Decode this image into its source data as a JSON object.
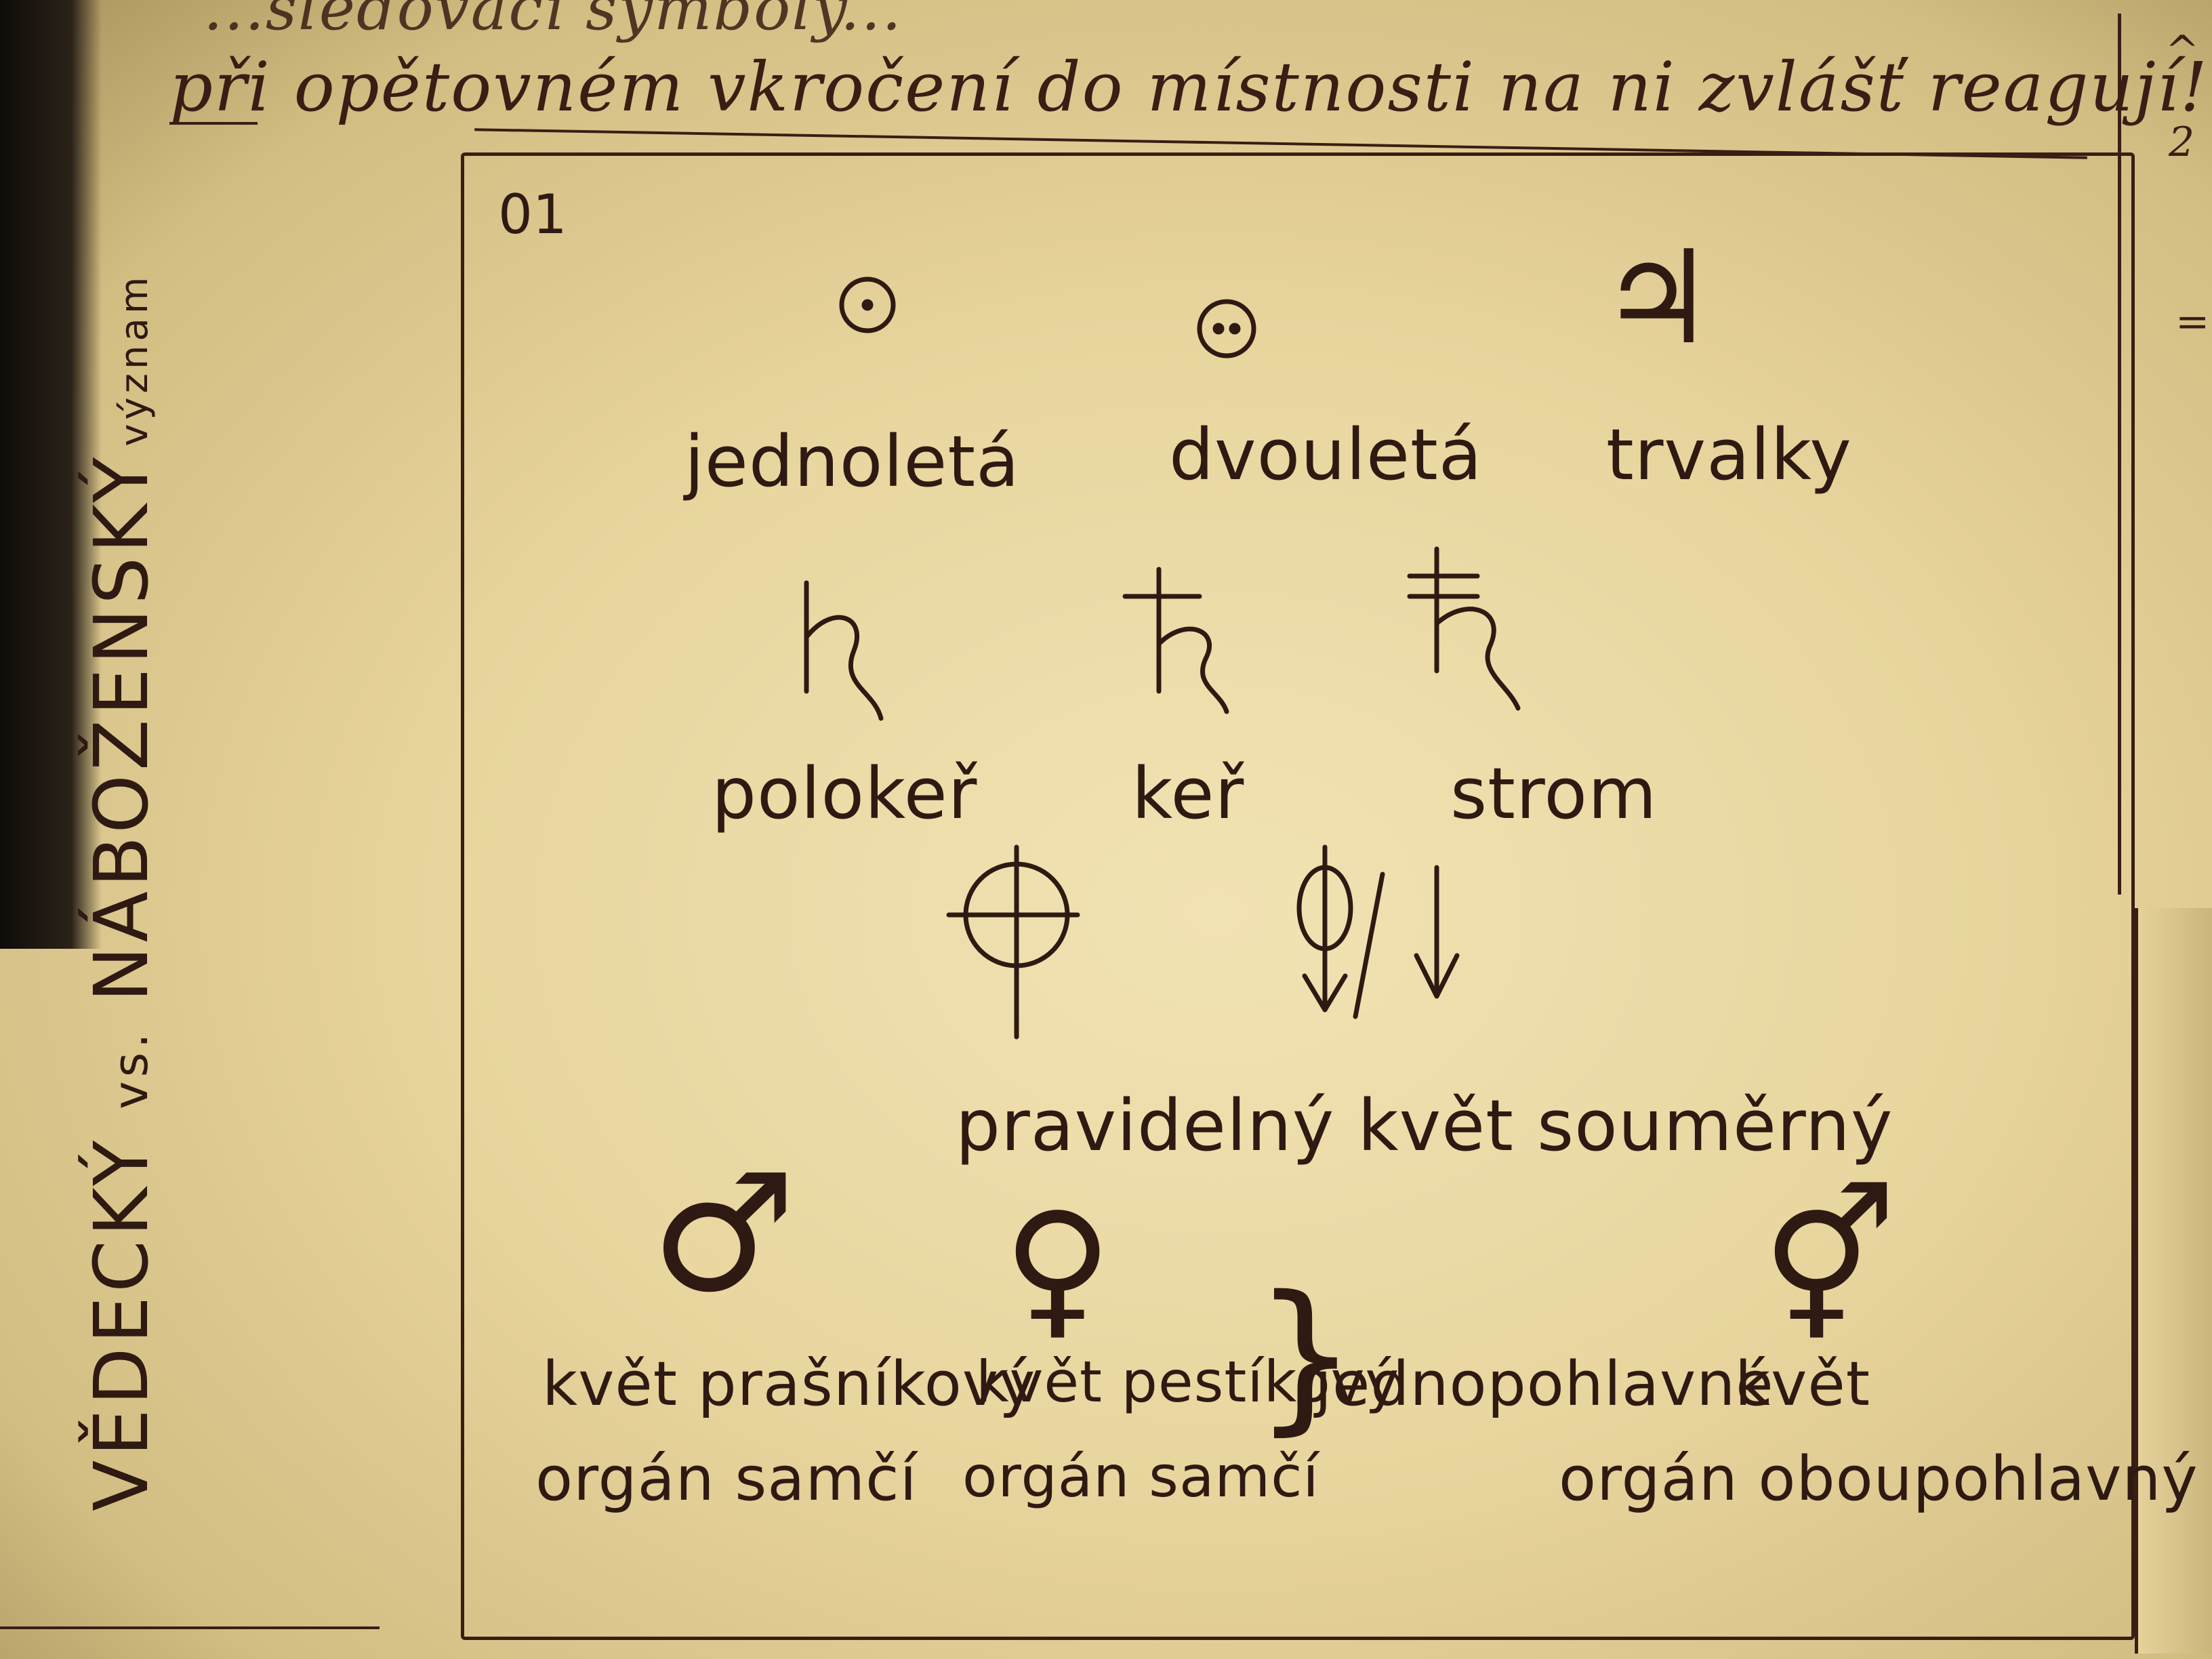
{
  "header": {
    "top_line": "...sledovací symboly...",
    "main_line": "při opětovném vkročení do místnosti na ni zvlášť reagují!"
  },
  "side_notes": {
    "right_top_1": "^",
    "right_top_2": "2",
    "right_top_3": "="
  },
  "vertical_title": {
    "left": "VĚDECKÝ",
    "vs": "vs.",
    "right": "NÁBOŽENSKÝ",
    "suffix": "význam"
  },
  "frame": {
    "number": "01"
  },
  "row1": [
    {
      "icon": "annual-circle-dot-icon",
      "label": "jednoletá"
    },
    {
      "icon": "biennial-circle-two-dots-icon",
      "label": "dvouletá"
    },
    {
      "icon": "perennial-jupiter-icon",
      "glyph": "♃",
      "label": "trvalky"
    }
  ],
  "row2": [
    {
      "icon": "saturn-subshrub-icon",
      "label": "polokeř"
    },
    {
      "icon": "saturn-shrub-icon",
      "label": "keř"
    },
    {
      "icon": "saturn-tree-icon",
      "label": "strom"
    }
  ],
  "row3": {
    "label": "pravidelný květ souměrný",
    "separator": "/"
  },
  "row4": [
    {
      "icon": "male-symbol-icon",
      "glyph": "♂",
      "line1": "květ prašníkový",
      "line2": "orgán samčí"
    },
    {
      "icon": "female-symbol-icon",
      "glyph": "♀",
      "line1": "květ pestíkový",
      "line2": "orgán samčí"
    },
    {
      "brace": "}",
      "label": "jednopohlavné"
    },
    {
      "icon": "hermaphrodite-symbol-icon",
      "glyph": "⚥",
      "line1": "květ",
      "line2": "orgán oboupohlavný"
    }
  ]
}
